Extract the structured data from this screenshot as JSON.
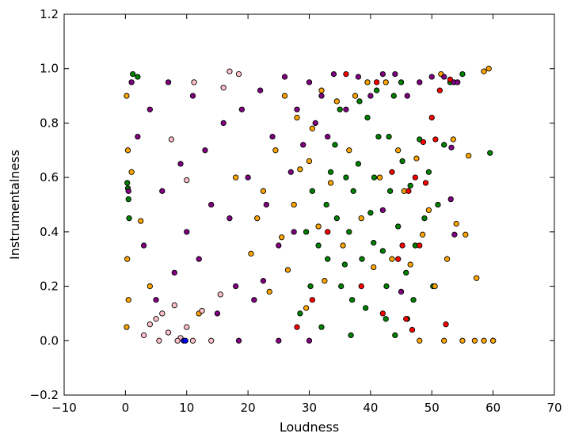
{
  "chart_data": {
    "type": "scatter",
    "title": "",
    "xlabel": "Loudness",
    "ylabel": "Instrumentalness",
    "xlim": [
      -10,
      70
    ],
    "ylim": [
      -0.2,
      1.2
    ],
    "x_ticks": [
      -10,
      0,
      10,
      20,
      30,
      40,
      50,
      60,
      70
    ],
    "x_tick_labels": [
      "−10",
      "0",
      "10",
      "20",
      "30",
      "40",
      "50",
      "60",
      "70"
    ],
    "y_ticks": [
      -0.2,
      0.0,
      0.2,
      0.4,
      0.6,
      0.8,
      1.0,
      1.2
    ],
    "y_tick_labels": [
      "−0.2",
      "0.0",
      "0.2",
      "0.4",
      "0.6",
      "0.8",
      "1.0",
      "1.2"
    ],
    "grid": false,
    "legend": "none",
    "marker": "circle",
    "marker_edge_color": "#000000",
    "series": [
      {
        "color": "#008000",
        "points": [
          [
            0.5,
            0.52
          ],
          [
            0.3,
            0.58
          ],
          [
            0.4,
            0.56
          ],
          [
            0.6,
            0.45
          ],
          [
            1.2,
            0.98
          ],
          [
            2.0,
            0.97
          ],
          [
            28.5,
            0.1
          ],
          [
            30.2,
            0.2
          ],
          [
            31.5,
            0.35
          ],
          [
            32.8,
            0.5
          ],
          [
            33.5,
            0.62
          ],
          [
            34.2,
            0.72
          ],
          [
            35.0,
            0.85
          ],
          [
            35.8,
            0.28
          ],
          [
            36.5,
            0.4
          ],
          [
            37.2,
            0.55
          ],
          [
            38.0,
            0.65
          ],
          [
            38.6,
            0.3
          ],
          [
            39.2,
            0.12
          ],
          [
            40.0,
            0.47
          ],
          [
            40.6,
            0.6
          ],
          [
            41.3,
            0.75
          ],
          [
            42.0,
            0.33
          ],
          [
            42.6,
            0.2
          ],
          [
            43.2,
            0.55
          ],
          [
            43.8,
            0.9
          ],
          [
            44.5,
            0.42
          ],
          [
            45.2,
            0.66
          ],
          [
            45.8,
            0.25
          ],
          [
            46.5,
            0.57
          ],
          [
            47.3,
            0.35
          ],
          [
            48.0,
            0.74
          ],
          [
            48.8,
            0.45
          ],
          [
            49.5,
            0.62
          ],
          [
            50.2,
            0.2
          ],
          [
            51.0,
            0.5
          ],
          [
            52.0,
            0.72
          ],
          [
            53.0,
            0.95
          ],
          [
            55.0,
            0.98
          ],
          [
            59.5,
            0.69
          ],
          [
            60.0,
            0.0
          ],
          [
            44.0,
            0.02
          ],
          [
            46.0,
            0.08
          ],
          [
            37.0,
            0.15
          ],
          [
            39.5,
            0.82
          ],
          [
            41.0,
            0.92
          ],
          [
            36.0,
            0.6
          ],
          [
            34.5,
            0.45
          ],
          [
            33.0,
            0.3
          ],
          [
            32.0,
            0.05
          ],
          [
            30.5,
            0.55
          ],
          [
            29.5,
            0.4
          ],
          [
            42.5,
            0.08
          ],
          [
            38.2,
            0.88
          ],
          [
            47.0,
            0.15
          ],
          [
            45.0,
            0.95
          ],
          [
            43.0,
            0.75
          ],
          [
            40.5,
            0.36
          ],
          [
            36.8,
            0.02
          ],
          [
            35.2,
            0.2
          ]
        ]
      },
      {
        "color": "#ffa500",
        "points": [
          [
            0.2,
            0.9
          ],
          [
            0.4,
            0.7
          ],
          [
            0.3,
            0.3
          ],
          [
            0.5,
            0.15
          ],
          [
            0.2,
            0.05
          ],
          [
            1.0,
            0.62
          ],
          [
            2.5,
            0.44
          ],
          [
            4.0,
            0.2
          ],
          [
            12.0,
            0.1
          ],
          [
            18.0,
            0.6
          ],
          [
            20.5,
            0.32
          ],
          [
            21.5,
            0.45
          ],
          [
            22.5,
            0.55
          ],
          [
            23.5,
            0.18
          ],
          [
            24.5,
            0.7
          ],
          [
            25.5,
            0.38
          ],
          [
            26.5,
            0.26
          ],
          [
            27.5,
            0.5
          ],
          [
            28.5,
            0.63
          ],
          [
            29.5,
            0.12
          ],
          [
            30.5,
            0.78
          ],
          [
            31.5,
            0.42
          ],
          [
            32.5,
            0.22
          ],
          [
            33.5,
            0.58
          ],
          [
            34.5,
            0.88
          ],
          [
            35.5,
            0.35
          ],
          [
            36.5,
            0.7
          ],
          [
            37.5,
            0.9
          ],
          [
            38.5,
            0.45
          ],
          [
            39.5,
            0.95
          ],
          [
            40.5,
            0.27
          ],
          [
            41.5,
            0.6
          ],
          [
            42.5,
            0.95
          ],
          [
            43.5,
            0.3
          ],
          [
            44.5,
            0.7
          ],
          [
            45.5,
            0.55
          ],
          [
            46.5,
            0.28
          ],
          [
            47.5,
            0.67
          ],
          [
            48.5,
            0.39
          ],
          [
            49.5,
            0.48
          ],
          [
            50.5,
            0.2
          ],
          [
            51.5,
            0.98
          ],
          [
            52.5,
            0.3
          ],
          [
            53.5,
            0.74
          ],
          [
            54.0,
            0.43
          ],
          [
            55.5,
            0.39
          ],
          [
            56.0,
            0.68
          ],
          [
            57.3,
            0.23
          ],
          [
            58.5,
            0.99
          ],
          [
            59.3,
            1.0
          ],
          [
            48.0,
            0.0
          ],
          [
            52.0,
            0.0
          ],
          [
            55.0,
            0.0
          ],
          [
            57.0,
            0.0
          ],
          [
            58.5,
            0.0
          ],
          [
            60.0,
            0.0
          ],
          [
            26.0,
            0.9
          ],
          [
            28.0,
            0.82
          ],
          [
            30.0,
            0.66
          ],
          [
            32.0,
            0.92
          ]
        ]
      },
      {
        "color": "#ff0000",
        "points": [
          [
            28.0,
            0.05
          ],
          [
            30.5,
            0.15
          ],
          [
            33.0,
            0.4
          ],
          [
            36.0,
            0.98
          ],
          [
            38.5,
            0.2
          ],
          [
            41.0,
            0.95
          ],
          [
            42.0,
            0.1
          ],
          [
            43.5,
            0.62
          ],
          [
            44.5,
            0.3
          ],
          [
            45.8,
            0.08
          ],
          [
            46.2,
            0.55
          ],
          [
            47.3,
            0.6
          ],
          [
            48.0,
            0.35
          ],
          [
            48.6,
            0.73
          ],
          [
            49.0,
            0.58
          ],
          [
            50.0,
            0.82
          ],
          [
            50.6,
            0.74
          ],
          [
            51.3,
            0.92
          ],
          [
            52.3,
            0.06
          ],
          [
            53.0,
            0.96
          ],
          [
            45.2,
            0.35
          ],
          [
            46.8,
            0.04
          ]
        ]
      },
      {
        "color": "#800080",
        "points": [
          [
            0.5,
            0.55
          ],
          [
            1.0,
            0.95
          ],
          [
            2.0,
            0.75
          ],
          [
            3.0,
            0.35
          ],
          [
            4.0,
            0.85
          ],
          [
            5.0,
            0.15
          ],
          [
            6.0,
            0.55
          ],
          [
            7.0,
            0.95
          ],
          [
            8.0,
            0.25
          ],
          [
            9.0,
            0.65
          ],
          [
            10.0,
            0.4
          ],
          [
            11.0,
            0.9
          ],
          [
            12.0,
            0.3
          ],
          [
            13.0,
            0.7
          ],
          [
            14.0,
            0.5
          ],
          [
            15.0,
            0.1
          ],
          [
            16.0,
            0.8
          ],
          [
            17.0,
            0.45
          ],
          [
            18.0,
            0.2
          ],
          [
            19.0,
            0.85
          ],
          [
            20.0,
            0.6
          ],
          [
            21.0,
            0.15
          ],
          [
            22.0,
            0.92
          ],
          [
            23.0,
            0.5
          ],
          [
            24.0,
            0.75
          ],
          [
            25.0,
            0.35
          ],
          [
            26.0,
            0.97
          ],
          [
            27.0,
            0.62
          ],
          [
            28.0,
            0.85
          ],
          [
            29.0,
            0.72
          ],
          [
            30.0,
            0.95
          ],
          [
            31.0,
            0.8
          ],
          [
            32.0,
            0.9
          ],
          [
            33.0,
            0.75
          ],
          [
            34.0,
            0.98
          ],
          [
            36.0,
            0.85
          ],
          [
            38.0,
            0.97
          ],
          [
            40.0,
            0.9
          ],
          [
            42.0,
            0.98
          ],
          [
            44.0,
            0.98
          ],
          [
            46.0,
            0.9
          ],
          [
            48.0,
            0.95
          ],
          [
            50.0,
            0.97
          ],
          [
            52.0,
            0.97
          ],
          [
            53.6,
            0.95
          ],
          [
            54.2,
            0.95
          ],
          [
            53.2,
            0.71
          ],
          [
            53.7,
            0.39
          ],
          [
            53.1,
            0.52
          ],
          [
            45.0,
            0.18
          ],
          [
            42.0,
            0.48
          ],
          [
            27.5,
            0.4
          ],
          [
            22.5,
            0.22
          ],
          [
            18.5,
            0.0
          ],
          [
            25.0,
            0.0
          ],
          [
            30.0,
            0.0
          ]
        ]
      },
      {
        "color": "#ffc0cb",
        "points": [
          [
            3.0,
            0.02
          ],
          [
            4.0,
            0.06
          ],
          [
            5.0,
            0.08
          ],
          [
            6.0,
            0.1
          ],
          [
            7.0,
            0.03
          ],
          [
            8.0,
            0.13
          ],
          [
            9.0,
            0.01
          ],
          [
            10.0,
            0.05
          ],
          [
            11.0,
            0.0
          ],
          [
            12.5,
            0.11
          ],
          [
            14.0,
            0.0
          ],
          [
            15.5,
            0.17
          ],
          [
            17.0,
            0.99
          ],
          [
            18.5,
            0.98
          ],
          [
            11.2,
            0.95
          ],
          [
            7.5,
            0.74
          ],
          [
            10.0,
            0.59
          ],
          [
            16.0,
            0.93
          ],
          [
            5.5,
            0.0
          ],
          [
            8.5,
            0.0
          ]
        ]
      },
      {
        "color": "#0000ff",
        "points": [
          [
            9.5,
            0.0
          ],
          [
            9.8,
            0.0
          ]
        ]
      }
    ]
  }
}
